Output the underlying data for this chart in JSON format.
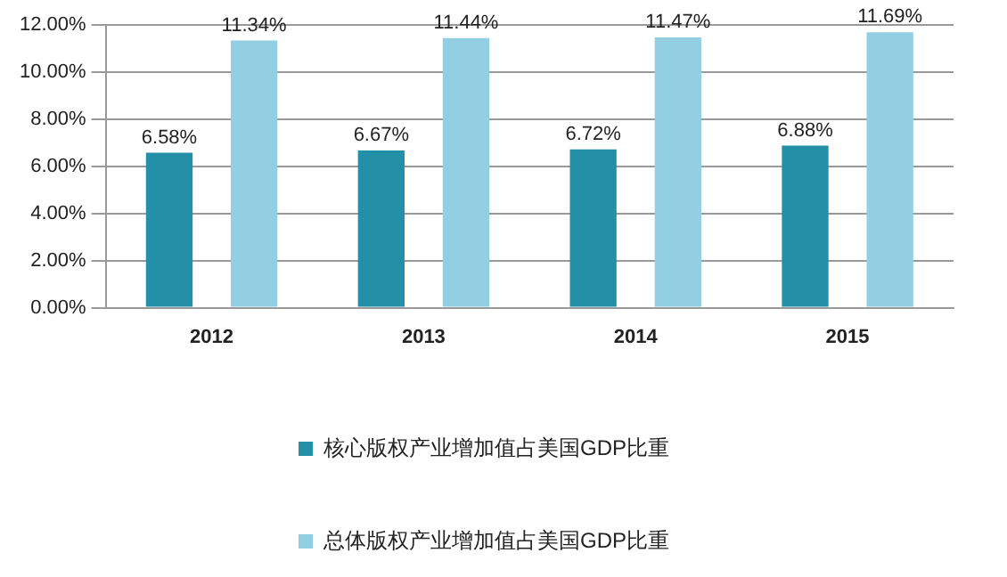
{
  "chart_data": {
    "type": "bar",
    "categories": [
      "2012",
      "2013",
      "2014",
      "2015"
    ],
    "series": [
      {
        "name": "核心版权产业增加值占美国GDP比重",
        "color": "#2490a8",
        "values": [
          6.58,
          6.67,
          6.72,
          6.88
        ],
        "value_labels": [
          "6.58%",
          "6.67%",
          "6.72%",
          "6.88%"
        ]
      },
      {
        "name": "总体版权产业增加值占美国GDP比重",
        "color": "#93cfe2",
        "values": [
          11.34,
          11.44,
          11.47,
          11.69
        ],
        "value_labels": [
          "11.34%",
          "11.44%",
          "11.47%",
          "11.69%"
        ]
      }
    ],
    "ylim": [
      0,
      12
    ],
    "yticks": [
      {
        "value": 0,
        "label": "0.00%"
      },
      {
        "value": 2,
        "label": "2.00%"
      },
      {
        "value": 4,
        "label": "4.00%"
      },
      {
        "value": 6,
        "label": "6.00%"
      },
      {
        "value": 8,
        "label": "8.00%"
      },
      {
        "value": 10,
        "label": "10.00%"
      },
      {
        "value": 12,
        "label": "12.00%"
      }
    ],
    "grid": "y",
    "legend": "bottom"
  }
}
